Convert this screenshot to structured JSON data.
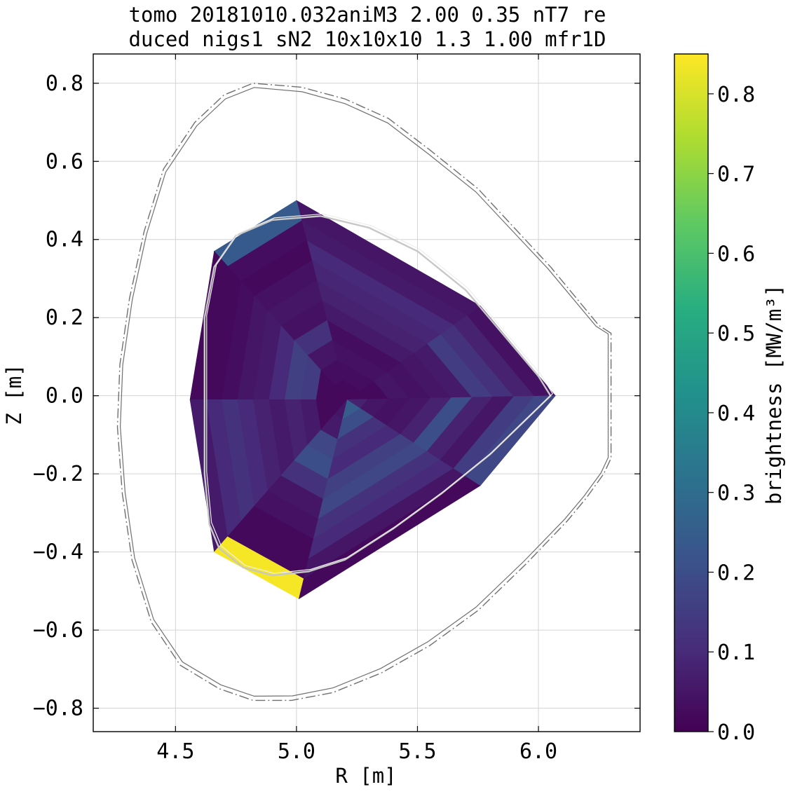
{
  "chart_data": [
    {
      "type": "heatmap",
      "title_lines": [
        "tomo 20181010.032aniM3 2.00 0.35 nT7 re",
        "duced nigs1 sN2 10x10x10 1.3 1.00 mfr1D"
      ],
      "xlabel": "R [m]",
      "ylabel": "Z [m]",
      "xlim": [
        4.16,
        6.42
      ],
      "ylim": [
        -0.86,
        0.875
      ],
      "xticks": [
        4.5,
        5.0,
        5.5,
        6.0
      ],
      "xtick_labels": [
        "4.5",
        "5.0",
        "5.5",
        "6.0"
      ],
      "yticks": [
        0.8,
        0.6,
        0.4,
        0.2,
        0.0,
        -0.2,
        -0.4,
        -0.6,
        -0.8
      ],
      "ytick_labels": [
        "0.8",
        "0.6",
        "0.4",
        "0.2",
        "0.0",
        "−0.2",
        "−0.4",
        "−0.6",
        "−0.8"
      ],
      "grid": true,
      "colormap": "viridis",
      "grid_geometry": {
        "axis_R": 5.21,
        "axis_Z": -0.01,
        "corners": [
          [
            4.56,
            -0.01
          ],
          [
            4.66,
            0.37
          ],
          [
            5.0,
            0.5
          ],
          [
            5.76,
            0.23
          ],
          [
            6.07,
            0.0
          ],
          [
            5.76,
            -0.23
          ],
          [
            5.01,
            -0.52
          ],
          [
            4.66,
            -0.4
          ]
        ],
        "radial_cells": 10,
        "poloidal_cells": 8
      },
      "cells_note": "values in MW/m3; rows = radial shells (inner to outer), columns = poloidal sectors starting at the outboard midplane going counter-clockwise",
      "cells": [
        [
          0.02,
          0.02,
          0.02,
          0.02,
          0.02,
          0.05,
          0.25,
          0.08
        ],
        [
          0.02,
          0.03,
          0.03,
          0.02,
          0.02,
          0.06,
          0.2,
          0.05
        ],
        [
          0.05,
          0.04,
          0.05,
          0.15,
          0.06,
          0.18,
          0.12,
          0.04
        ],
        [
          0.04,
          0.03,
          0.12,
          0.16,
          0.08,
          0.2,
          0.1,
          0.05
        ],
        [
          0.05,
          0.06,
          0.04,
          0.1,
          0.06,
          0.12,
          0.16,
          0.08
        ],
        [
          0.06,
          0.08,
          0.05,
          0.06,
          0.08,
          0.05,
          0.18,
          0.2
        ],
        [
          0.15,
          0.09,
          0.04,
          0.05,
          0.1,
          0.04,
          0.12,
          0.08
        ],
        [
          0.12,
          0.1,
          0.02,
          0.03,
          0.12,
          0.02,
          0.1,
          0.05
        ],
        [
          0.08,
          0.06,
          0.03,
          0.02,
          0.1,
          0.02,
          0.05,
          0.15
        ],
        [
          0.04,
          0.05,
          0.24,
          0.02,
          0.06,
          0.84,
          0.02,
          0.18
        ]
      ]
    },
    {
      "type": "line",
      "description": "overlay curves in R–Z plane",
      "series": [
        {
          "role": "first wall (dash-dot, gray)",
          "color": "#707070",
          "x": [
            6.3,
            6.25,
            6.05,
            5.9,
            5.75,
            5.55,
            5.38,
            5.2,
            5.02,
            4.82,
            4.7,
            4.58,
            4.45,
            4.37,
            4.31,
            4.27,
            4.26,
            4.28,
            4.32,
            4.4,
            4.52,
            4.68,
            4.82,
            4.98,
            5.15,
            5.35,
            5.55,
            5.75,
            5.95,
            6.12,
            6.2,
            6.27,
            6.3
          ],
          "y": [
            0.16,
            0.18,
            0.33,
            0.43,
            0.53,
            0.63,
            0.71,
            0.76,
            0.79,
            0.8,
            0.77,
            0.7,
            0.58,
            0.42,
            0.25,
            0.08,
            -0.08,
            -0.25,
            -0.42,
            -0.58,
            -0.69,
            -0.75,
            -0.78,
            -0.78,
            -0.76,
            -0.71,
            -0.64,
            -0.55,
            -0.43,
            -0.32,
            -0.26,
            -0.2,
            -0.16
          ]
        },
        {
          "role": "last closed flux surface (light gray)",
          "color": "#c8c8c8",
          "x": [
            6.05,
            6.0,
            5.85,
            5.7,
            5.5,
            5.3,
            5.1,
            4.9,
            4.75,
            4.66,
            4.62,
            4.62,
            4.62,
            4.64,
            4.68,
            4.78,
            4.9,
            5.05,
            5.2,
            5.4,
            5.6,
            5.8,
            5.95,
            6.05
          ],
          "y": [
            0.0,
            0.05,
            0.16,
            0.27,
            0.37,
            0.43,
            0.46,
            0.45,
            0.41,
            0.33,
            0.2,
            0.0,
            -0.2,
            -0.33,
            -0.39,
            -0.44,
            -0.46,
            -0.45,
            -0.42,
            -0.34,
            -0.25,
            -0.15,
            -0.06,
            0.0
          ]
        }
      ]
    },
    {
      "type": "colorbar",
      "label": "brightness [MW/m³]",
      "range": [
        0.0,
        0.85
      ],
      "ticks": [
        0.0,
        0.1,
        0.2,
        0.3,
        0.4,
        0.5,
        0.6,
        0.7,
        0.8
      ],
      "tick_labels": [
        "0.0",
        "0.1",
        "0.2",
        "0.3",
        "0.4",
        "0.5",
        "0.6",
        "0.7",
        "0.8"
      ]
    }
  ]
}
